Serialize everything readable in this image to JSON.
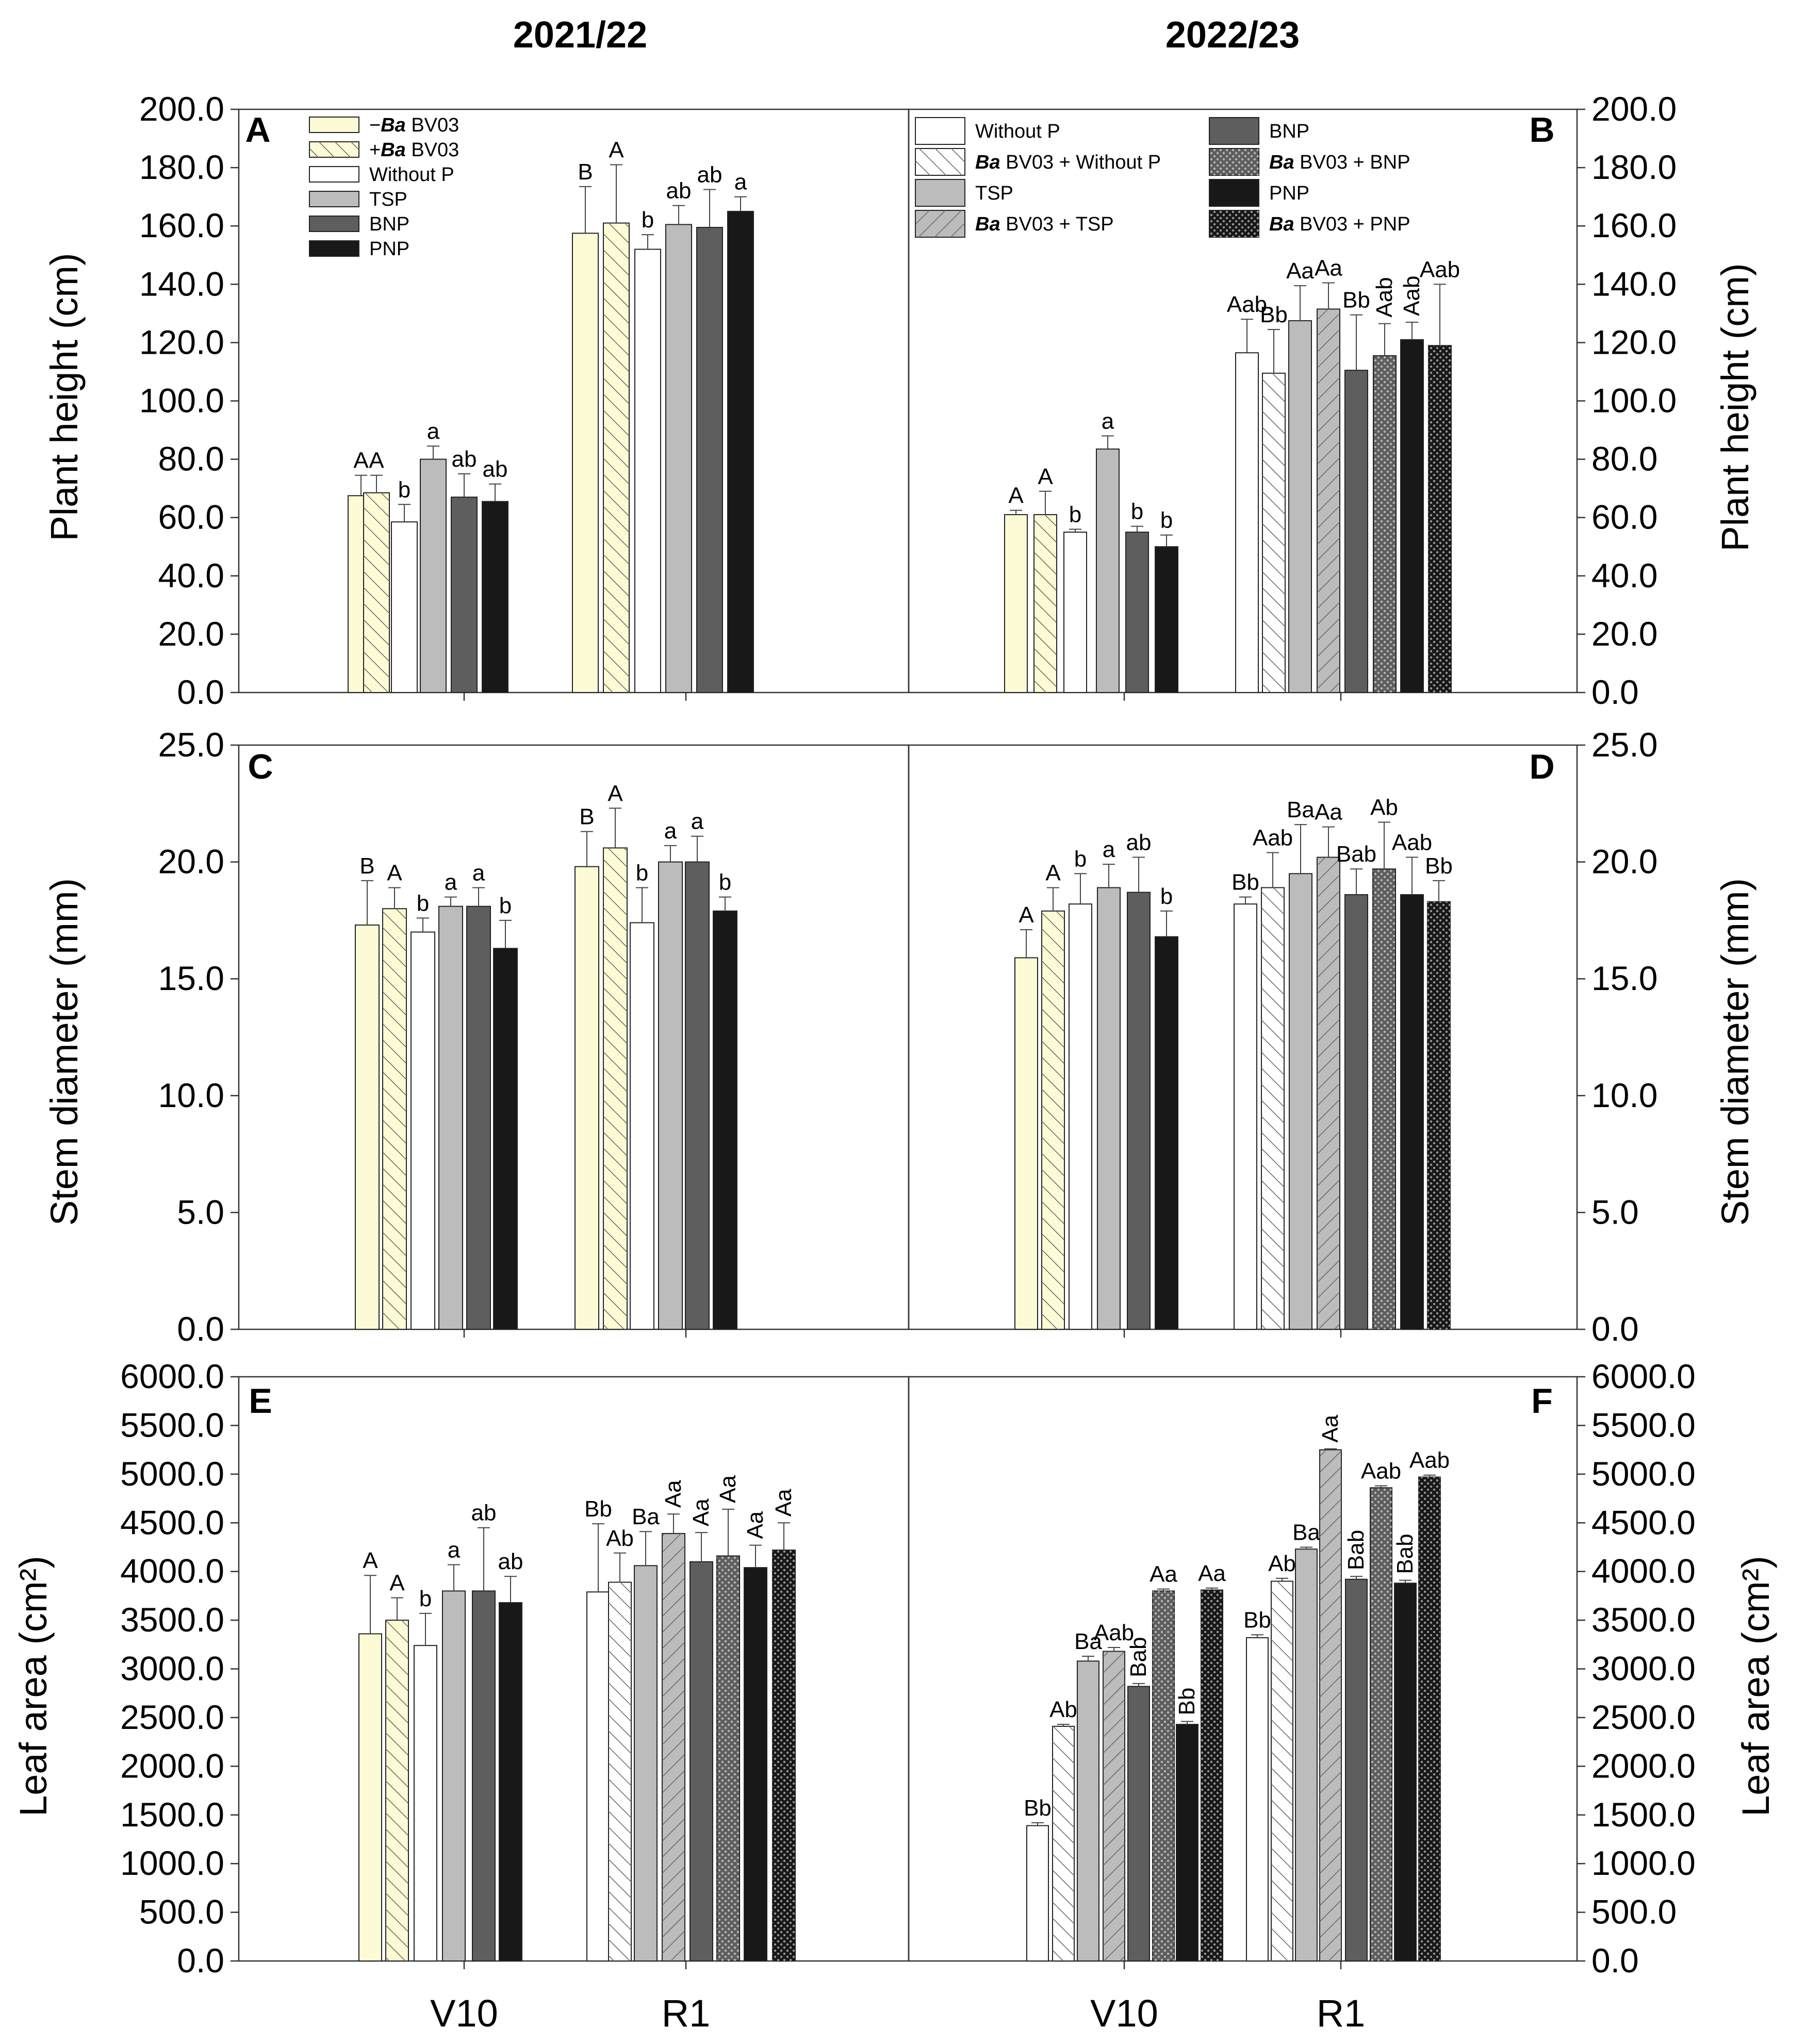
{
  "titles": {
    "left": "2021/22",
    "right": "2022/23"
  },
  "ylabels": {
    "A": "Plant height (cm)",
    "C": "Stem diameter (mm)",
    "E": "Leaf area (cm²)"
  },
  "legend_A": {
    "items": [
      {
        "pre": "−",
        "em": "Ba",
        "post": " BV03",
        "fill": "#fdfbd6",
        "pattern": "none"
      },
      {
        "pre": "+",
        "em": "Ba",
        "post": " BV03",
        "fill": "#fdfbd6",
        "pattern": "hatch"
      },
      {
        "pre": "",
        "em": "",
        "post": "Without P",
        "fill": "#ffffff",
        "pattern": "none"
      },
      {
        "pre": "",
        "em": "",
        "post": "TSP",
        "fill": "#bcbcbc",
        "pattern": "none"
      },
      {
        "pre": "",
        "em": "",
        "post": "BNP",
        "fill": "#5e5e5e",
        "pattern": "none"
      },
      {
        "pre": "",
        "em": "",
        "post": "PNP",
        "fill": "#181818",
        "pattern": "none"
      }
    ]
  },
  "legend_B": {
    "items": [
      {
        "em": "",
        "post": "Without P",
        "fill": "#ffffff",
        "pattern": "none"
      },
      {
        "em": "Ba",
        "post": " BV03 + Without P",
        "fill": "#ffffff",
        "pattern": "hatch"
      },
      {
        "em": "",
        "post": "TSP",
        "fill": "#bcbcbc",
        "pattern": "none"
      },
      {
        "em": "Ba",
        "post": " BV03 + TSP",
        "fill": "#bcbcbc",
        "pattern": "back"
      },
      {
        "em": "",
        "post": "BNP",
        "fill": "#5e5e5e",
        "pattern": "none"
      },
      {
        "em": "Ba",
        "post": " BV03 + BNP",
        "fill": "#5e5e5e",
        "pattern": "dots"
      },
      {
        "em": "",
        "post": "PNP",
        "fill": "#181818",
        "pattern": "none"
      },
      {
        "em": "Ba",
        "post": " BV03 + PNP",
        "fill": "#181818",
        "pattern": "dots"
      }
    ]
  },
  "chart_data": [
    {
      "panel": "A",
      "type": "bar",
      "ylim": [
        0,
        200
      ],
      "yticks": [
        "0.0",
        "20.0",
        "40.0",
        "60.0",
        "80.0",
        "100.0",
        "120.0",
        "140.0",
        "160.0",
        "180.0",
        "200.0"
      ],
      "categories": [
        "V10",
        "R1"
      ],
      "series": [
        {
          "name": "−Ba BV03",
          "values": [
            67.5,
            157.5
          ],
          "errors": [
            7,
            16
          ],
          "labels": [
            "A",
            "B"
          ]
        },
        {
          "name": "+Ba BV03",
          "values": [
            68.5,
            161
          ],
          "errors": [
            6,
            20
          ],
          "labels": [
            "A",
            "A"
          ]
        },
        {
          "name": "Without P",
          "values": [
            58.5,
            152
          ],
          "errors": [
            6,
            5
          ],
          "labels": [
            "b",
            "b"
          ]
        },
        {
          "name": "TSP",
          "values": [
            80,
            160.5
          ],
          "errors": [
            4.5,
            6.5
          ],
          "labels": [
            "a",
            "ab"
          ]
        },
        {
          "name": "BNP",
          "values": [
            67,
            159.5
          ],
          "errors": [
            8,
            13
          ],
          "labels": [
            "ab",
            "ab"
          ]
        },
        {
          "name": "PNP",
          "values": [
            65.5,
            165
          ],
          "errors": [
            6,
            5
          ],
          "labels": [
            "ab",
            "a"
          ]
        }
      ]
    },
    {
      "panel": "B",
      "type": "bar",
      "ylim": [
        0,
        200
      ],
      "yticks": [
        "0.0",
        "20.0",
        "40.0",
        "60.0",
        "80.0",
        "100.0",
        "120.0",
        "140.0",
        "160.0",
        "180.0",
        "200.0"
      ],
      "categories": [
        "V10",
        "R1"
      ],
      "series": [
        {
          "name": "V10 −Ba BV03",
          "values": [
            61,
            null
          ],
          "errors": [
            1.5,
            0
          ],
          "labels": [
            "A",
            ""
          ]
        },
        {
          "name": "V10 +Ba BV03",
          "values": [
            61,
            null
          ],
          "errors": [
            8,
            0
          ],
          "labels": [
            "A",
            ""
          ]
        },
        {
          "name": "Without P",
          "values": [
            55,
            116.5
          ],
          "errors": [
            1,
            11.5
          ],
          "labels": [
            "b",
            "Aab"
          ]
        },
        {
          "name": "Ba BV03 + Without P",
          "values": [
            null,
            109.5
          ],
          "errors": [
            0,
            15
          ],
          "labels": [
            "",
            "Bb"
          ]
        },
        {
          "name": "TSP",
          "values": [
            83.5,
            127.5
          ],
          "errors": [
            4.5,
            12
          ],
          "labels": [
            "a",
            "Aa"
          ]
        },
        {
          "name": "Ba BV03 + TSP",
          "values": [
            null,
            131.5
          ],
          "errors": [
            0,
            9
          ],
          "labels": [
            "",
            "Aa"
          ]
        },
        {
          "name": "BNP",
          "values": [
            55,
            110.5
          ],
          "errors": [
            2,
            19
          ],
          "labels": [
            "b",
            "Bb"
          ]
        },
        {
          "name": "Ba BV03 + BNP",
          "values": [
            null,
            115.5
          ],
          "errors": [
            0,
            11
          ],
          "labels": [
            "",
            "Aab"
          ]
        },
        {
          "name": "PNP",
          "values": [
            50,
            121
          ],
          "errors": [
            4,
            6
          ],
          "labels": [
            "b",
            "Aab"
          ]
        },
        {
          "name": "Ba BV03 + PNP",
          "values": [
            null,
            119
          ],
          "errors": [
            0,
            21
          ],
          "labels": [
            "",
            "Aab"
          ]
        }
      ]
    },
    {
      "panel": "C",
      "type": "bar",
      "ylim": [
        0,
        25
      ],
      "yticks": [
        "0.0",
        "5.0",
        "10.0",
        "15.0",
        "20.0",
        "25.0"
      ],
      "categories": [
        "V10",
        "R1"
      ],
      "series": [
        {
          "name": "−Ba BV03",
          "values": [
            17.3,
            19.8
          ],
          "errors": [
            1.9,
            1.5
          ],
          "labels": [
            "B",
            "B"
          ]
        },
        {
          "name": "+Ba BV03",
          "values": [
            18,
            20.6
          ],
          "errors": [
            0.9,
            1.7
          ],
          "labels": [
            "A",
            "A"
          ]
        },
        {
          "name": "Without P",
          "values": [
            17,
            17.4
          ],
          "errors": [
            0.6,
            1.5
          ],
          "labels": [
            "b",
            "b"
          ]
        },
        {
          "name": "TSP",
          "values": [
            18.1,
            20
          ],
          "errors": [
            0.4,
            0.7
          ],
          "labels": [
            "a",
            "a"
          ]
        },
        {
          "name": "BNP",
          "values": [
            18.1,
            20
          ],
          "errors": [
            0.8,
            1.1
          ],
          "labels": [
            "a",
            "a"
          ]
        },
        {
          "name": "PNP",
          "values": [
            16.3,
            17.9
          ],
          "errors": [
            1.2,
            0.6
          ],
          "labels": [
            "b",
            "b"
          ]
        }
      ]
    },
    {
      "panel": "D",
      "type": "bar",
      "ylim": [
        0,
        25
      ],
      "yticks": [
        "0.0",
        "5.0",
        "10.0",
        "15.0",
        "20.0",
        "25.0"
      ],
      "categories": [
        "V10",
        "R1"
      ],
      "series": [
        {
          "name": "V10 −Ba BV03",
          "values": [
            15.9,
            null
          ],
          "errors": [
            1.2,
            0
          ],
          "labels": [
            "A",
            ""
          ]
        },
        {
          "name": "V10 +Ba BV03",
          "values": [
            17.9,
            null
          ],
          "errors": [
            1,
            0
          ],
          "labels": [
            "A",
            ""
          ]
        },
        {
          "name": "Without P",
          "values": [
            18.2,
            18.2
          ],
          "errors": [
            1.3,
            0.3
          ],
          "labels": [
            "b",
            "Bb"
          ]
        },
        {
          "name": "Ba BV03 + Without P",
          "values": [
            null,
            18.9
          ],
          "errors": [
            0,
            1.5
          ],
          "labels": [
            "",
            "Aab"
          ]
        },
        {
          "name": "TSP",
          "values": [
            18.9,
            19.5
          ],
          "errors": [
            1,
            2.1
          ],
          "labels": [
            "a",
            "Ba"
          ]
        },
        {
          "name": "Ba BV03 + TSP",
          "values": [
            null,
            20.2
          ],
          "errors": [
            0,
            1.3
          ],
          "labels": [
            "",
            "Aa"
          ]
        },
        {
          "name": "BNP",
          "values": [
            18.7,
            18.6
          ],
          "errors": [
            1.5,
            1.1
          ],
          "labels": [
            "ab",
            "Bab"
          ]
        },
        {
          "name": "Ba BV03 + BNP",
          "values": [
            null,
            19.7
          ],
          "errors": [
            0,
            2
          ],
          "labels": [
            "",
            "Ab"
          ]
        },
        {
          "name": "PNP",
          "values": [
            16.8,
            18.6
          ],
          "errors": [
            1.1,
            1.6
          ],
          "labels": [
            "b",
            "Aab"
          ]
        },
        {
          "name": "Ba BV03 + PNP",
          "values": [
            null,
            18.3
          ],
          "errors": [
            0,
            0.9
          ],
          "labels": [
            "",
            "Bb"
          ]
        }
      ]
    },
    {
      "panel": "E",
      "type": "bar",
      "ylim": [
        0,
        6000
      ],
      "yticks": [
        "0.0",
        "500.0",
        "1000.0",
        "1500.0",
        "2000.0",
        "2500.0",
        "3000.0",
        "3500.0",
        "4000.0",
        "4500.0",
        "5000.0",
        "5500.0",
        "6000.0"
      ],
      "categories": [
        "V10",
        "R1"
      ],
      "series": [
        {
          "name": "V10 −Ba BV03",
          "values": [
            3360,
            null
          ],
          "errors": [
            600,
            0
          ],
          "labels": [
            "A",
            ""
          ]
        },
        {
          "name": "V10 +Ba BV03",
          "values": [
            3500,
            null
          ],
          "errors": [
            230,
            0
          ],
          "labels": [
            "A",
            ""
          ]
        },
        {
          "name": "Without P",
          "values": [
            3240,
            3790
          ],
          "errors": [
            330,
            700
          ],
          "labels": [
            "b",
            "Bb"
          ]
        },
        {
          "name": "Ba BV03 + Without P",
          "values": [
            null,
            3890
          ],
          "errors": [
            0,
            300
          ],
          "labels": [
            "",
            "Ab"
          ]
        },
        {
          "name": "TSP",
          "values": [
            3800,
            4060
          ],
          "errors": [
            270,
            350
          ],
          "labels": [
            "a",
            "Ba"
          ]
        },
        {
          "name": "Ba BV03 + TSP",
          "values": [
            null,
            4390
          ],
          "errors": [
            0,
            200
          ],
          "labels": [
            "",
            "Aa"
          ]
        },
        {
          "name": "BNP",
          "values": [
            3800,
            4100
          ],
          "errors": [
            650,
            300
          ],
          "labels": [
            "ab",
            "Aa"
          ]
        },
        {
          "name": "Ba BV03 + BNP",
          "values": [
            null,
            4160
          ],
          "errors": [
            0,
            480
          ],
          "labels": [
            "",
            "Aa"
          ]
        },
        {
          "name": "PNP",
          "values": [
            3680,
            4040
          ],
          "errors": [
            270,
            230
          ],
          "labels": [
            "ab",
            "Aa"
          ]
        },
        {
          "name": "Ba BV03 + PNP",
          "values": [
            null,
            4220
          ],
          "errors": [
            0,
            280
          ],
          "labels": [
            "",
            "Aa"
          ]
        }
      ]
    },
    {
      "panel": "F",
      "type": "bar",
      "ylim": [
        0,
        6000
      ],
      "yticks": [
        "0.0",
        "500.0",
        "1000.0",
        "1500.0",
        "2000.0",
        "2500.0",
        "3000.0",
        "3500.0",
        "4000.0",
        "4500.0",
        "5000.0",
        "5500.0",
        "6000.0"
      ],
      "categories": [
        "V10",
        "R1"
      ],
      "series": [
        {
          "name": "Without P",
          "values": [
            1390,
            3320
          ],
          "errors": [
            30,
            30
          ],
          "labels": [
            "Bb",
            "Bb"
          ]
        },
        {
          "name": "Ba BV03 + Without P",
          "values": [
            2410,
            3900
          ],
          "errors": [
            20,
            30
          ],
          "labels": [
            "Ab",
            "Ab"
          ]
        },
        {
          "name": "TSP",
          "values": [
            3080,
            4230
          ],
          "errors": [
            50,
            20
          ],
          "labels": [
            "Ba",
            "Ba"
          ]
        },
        {
          "name": "Ba BV03 + TSP",
          "values": [
            3180,
            5250
          ],
          "errors": [
            40,
            10
          ],
          "labels": [
            "Aab",
            "Aa"
          ]
        },
        {
          "name": "BNP",
          "values": [
            2820,
            3920
          ],
          "errors": [
            30,
            30
          ],
          "labels": [
            "Bab",
            "Bab"
          ]
        },
        {
          "name": "Ba BV03 + BNP",
          "values": [
            3800,
            4860
          ],
          "errors": [
            20,
            20
          ],
          "labels": [
            "Aa",
            "Aab"
          ]
        },
        {
          "name": "PNP",
          "values": [
            2430,
            3880
          ],
          "errors": [
            30,
            30
          ],
          "labels": [
            "Bb",
            "Bab"
          ]
        },
        {
          "name": "Ba BV03 + PNP",
          "values": [
            3810,
            4970
          ],
          "errors": [
            20,
            20
          ],
          "labels": [
            "Aa",
            "Aab"
          ]
        }
      ]
    }
  ]
}
